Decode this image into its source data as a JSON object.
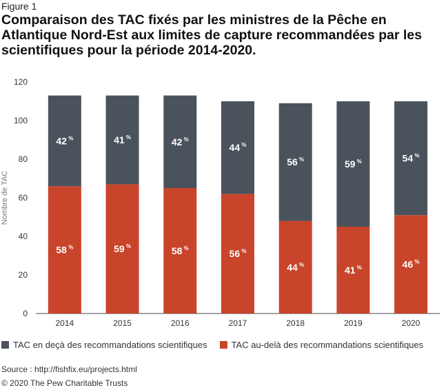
{
  "figure_label": "Figure 1",
  "title": "Comparaison des TAC fixés par les ministres de la Pêche en Atlantique Nord-Est aux limites de capture recommandées par les scientifiques pour la période 2014-2020.",
  "source": "Source : http://fishfix.eu/projects.html",
  "copyright": "© 2020 The Pew Charitable Trusts",
  "colors": {
    "below": "#4a525c",
    "above": "#c8442a",
    "axis": "#555555",
    "grid": "#d9d9d9"
  },
  "chart_data": {
    "type": "bar",
    "stacked": true,
    "categories": [
      "2014",
      "2015",
      "2016",
      "2017",
      "2018",
      "2019",
      "2020"
    ],
    "ylabel": "Nombre de TAC",
    "xlabel": "",
    "ylim": [
      0,
      120
    ],
    "yticks": [
      0,
      20,
      40,
      60,
      80,
      100,
      120
    ],
    "grid": false,
    "legend_position": "bottom",
    "series": [
      {
        "name": "TAC au-delà des recommandations scientifiques",
        "color": "#c8442a",
        "values": [
          66,
          67,
          65,
          62,
          48,
          45,
          51
        ],
        "labels": [
          "58 %",
          "59 %",
          "58 %",
          "56 %",
          "44 %",
          "41 %",
          "46 %"
        ]
      },
      {
        "name": "TAC en deçà des recommandations scientifiques",
        "color": "#4a525c",
        "values": [
          47,
          46,
          48,
          48,
          61,
          65,
          59
        ],
        "labels": [
          "42 %",
          "41 %",
          "42 %",
          "44 %",
          "56 %",
          "59 %",
          "54 %"
        ]
      }
    ]
  },
  "legend": [
    {
      "label": "TAC en deçà des recommandations scientifiques",
      "color": "#4a525c"
    },
    {
      "label": "TAC au-delà des recommandations scientifiques",
      "color": "#c8442a"
    }
  ]
}
